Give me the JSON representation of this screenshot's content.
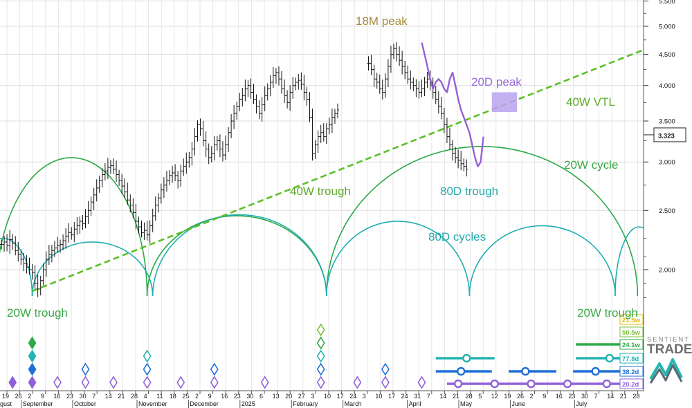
{
  "chart_data": {
    "type": "line",
    "y_axis": {
      "scale": "log",
      "tick_labels": [
        "5.500",
        "5.000",
        "4.500",
        "4.000",
        "3.500",
        "3.000",
        "2.500",
        "2.000"
      ],
      "tick_values": [
        5.5,
        5.0,
        4.5,
        4.0,
        3.5,
        3.0,
        2.5,
        2.0
      ],
      "current_value_label": "3.323",
      "current_value": 3.323
    },
    "x_axis": {
      "day_ticks": [
        "19",
        "26",
        "2",
        "9",
        "16",
        "23",
        "30",
        "7",
        "14",
        "21",
        "28",
        "4",
        "11",
        "18",
        "25",
        "2",
        "9",
        "16",
        "23",
        "30",
        "6",
        "13",
        "20",
        "27",
        "3",
        "10",
        "17",
        "24",
        "3",
        "10",
        "17",
        "24",
        "31",
        "7",
        "14",
        "21",
        "28",
        "5",
        "12",
        "19",
        "26",
        "2",
        "9",
        "16",
        "23",
        "30",
        "7",
        "14",
        "21",
        "28"
      ],
      "month_labels": [
        "gust",
        "September",
        "October",
        "November",
        "December",
        "2025",
        "February",
        "March",
        "April",
        "May",
        "June",
        "July"
      ],
      "month_after_tick": [
        -1,
        1,
        5,
        10,
        14,
        18,
        22,
        26,
        31,
        35,
        39,
        44
      ]
    },
    "price_bars": {
      "x_start": 0,
      "x_step": 1,
      "close": [
        2.2,
        2.22,
        2.19,
        2.24,
        2.21,
        2.15,
        2.12,
        2.08,
        2.05,
        2.02,
        2.0,
        1.98,
        1.9,
        1.86,
        1.92,
        2.0,
        2.08,
        2.12,
        2.15,
        2.17,
        2.19,
        2.2,
        2.23,
        2.27,
        2.3,
        2.28,
        2.33,
        2.36,
        2.4,
        2.38,
        2.44,
        2.5,
        2.58,
        2.65,
        2.72,
        2.8,
        2.86,
        2.9,
        2.94,
        2.96,
        2.92,
        2.86,
        2.8,
        2.74,
        2.68,
        2.6,
        2.55,
        2.48,
        2.4,
        2.35,
        2.3,
        2.32,
        2.28,
        2.36,
        2.45,
        2.55,
        2.62,
        2.7,
        2.75,
        2.8,
        2.85,
        2.88,
        2.85,
        2.8,
        2.9,
        2.95,
        3.0,
        3.05,
        3.15,
        3.3,
        3.45,
        3.4,
        3.25,
        3.15,
        3.05,
        3.1,
        3.2,
        3.25,
        3.15,
        3.08,
        3.2,
        3.35,
        3.5,
        3.6,
        3.7,
        3.8,
        3.85,
        3.95,
        4.0,
        3.9,
        3.8,
        3.7,
        3.6,
        3.72,
        3.85,
        3.95,
        4.05,
        4.15,
        4.2,
        4.1,
        3.95,
        3.85,
        3.75,
        3.9,
        4.0,
        4.05,
        4.08,
        4.02,
        3.9,
        3.8,
        3.55,
        3.1,
        3.2,
        3.3,
        3.35,
        3.3,
        3.4,
        3.45,
        3.55,
        3.6,
        3.65
      ],
      "close2": [
        4.35,
        4.25,
        4.1,
        4.05,
        3.95,
        3.9,
        4.1,
        4.3,
        4.5,
        4.6,
        4.5,
        4.4,
        4.3,
        4.2,
        4.1,
        4.05,
        4.0,
        3.95,
        3.9,
        3.95,
        4.05,
        4.1,
        4.05,
        3.9,
        3.8,
        3.7,
        3.6,
        3.45,
        3.3,
        3.2,
        3.1,
        3.05,
        3.02,
        2.98,
        2.95,
        2.92
      ],
      "close2_x_start": 131
    },
    "projection_line": {
      "points": [
        [
          150,
          4.7
        ],
        [
          151,
          4.5
        ],
        [
          152,
          4.3
        ],
        [
          153,
          4.1
        ],
        [
          154,
          3.95
        ],
        [
          155,
          4.05
        ],
        [
          156,
          4.1
        ],
        [
          157,
          4.05
        ],
        [
          158,
          3.95
        ],
        [
          159,
          3.9
        ],
        [
          160,
          4.1
        ],
        [
          161,
          4.2
        ],
        [
          162,
          4.0
        ],
        [
          163,
          3.8
        ],
        [
          164,
          3.65
        ],
        [
          165,
          3.55
        ],
        [
          166,
          3.45
        ],
        [
          167,
          3.35
        ],
        [
          168,
          3.2
        ],
        [
          169,
          3.05
        ],
        [
          170,
          2.95
        ],
        [
          171,
          3.0
        ],
        [
          172,
          3.3
        ]
      ]
    },
    "cycle_arcs": [
      {
        "kind": "20W",
        "x_from": -2,
        "x_to": 52,
        "peak": 3.05
      },
      {
        "kind": "20W",
        "x_from": 52,
        "x_to": 116,
        "peak": 2.45
      },
      {
        "kind": "20W",
        "x_from": 116,
        "x_to": 227,
        "peak": 3.18
      },
      {
        "kind": "80D",
        "x_from": -10,
        "x_to": 11,
        "peak": 2.25
      },
      {
        "kind": "80D",
        "x_from": 11,
        "x_to": 54,
        "peak": 2.22
      },
      {
        "kind": "80D",
        "x_from": 54,
        "x_to": 116,
        "peak": 2.46
      },
      {
        "kind": "80D",
        "x_from": 116,
        "x_to": 167,
        "peak": 2.4
      },
      {
        "kind": "80D",
        "x_from": 167,
        "x_to": 219,
        "peak": 2.36
      },
      {
        "kind": "80D",
        "x_from": 219,
        "x_to": 236,
        "peak": 2.35
      }
    ],
    "vtl": {
      "x_from": 11,
      "y_from": 1.85,
      "x_to": 233,
      "y_to": 4.65
    },
    "peak_box": {
      "x_from": 175,
      "x_to": 184,
      "y_from": 3.62,
      "y_to": 3.9
    },
    "annotations": {
      "peak_18m": "18M peak",
      "peak_20d": "20D peak",
      "vtl_40w": "40W VTL",
      "cycle_20w": "20W cycle",
      "trough_40w": "40W trough",
      "trough_80d": "80D trough",
      "cycles_80d": "80D cycles",
      "trough_20w_left": "20W trough",
      "trough_20w_right": "20W trough"
    },
    "diamond_markers": [
      {
        "x": 4,
        "levels": [
          0
        ]
      },
      {
        "x": 11,
        "levels": [
          0,
          1,
          2,
          3
        ]
      },
      {
        "x": 20,
        "levels": [
          0
        ]
      },
      {
        "x": 30,
        "levels": [
          0,
          1
        ]
      },
      {
        "x": 40,
        "levels": [
          0
        ]
      },
      {
        "x": 52,
        "levels": [
          0,
          1,
          2
        ]
      },
      {
        "x": 64,
        "levels": [
          0
        ]
      },
      {
        "x": 76,
        "levels": [
          0,
          1
        ]
      },
      {
        "x": 94,
        "levels": [
          0
        ]
      },
      {
        "x": 114,
        "levels": [
          0,
          1,
          2,
          3,
          4
        ]
      },
      {
        "x": 127,
        "levels": [
          0
        ]
      },
      {
        "x": 137,
        "levels": [
          0,
          1
        ]
      },
      {
        "x": 150,
        "levels": [
          0
        ]
      }
    ],
    "level_colors": [
      "#9060d8",
      "#1f6fd6",
      "#22b3b3",
      "#2eaa48",
      "#7fbf3a"
    ],
    "period_bars": [
      {
        "label": "21.5w",
        "color": "#e0b800",
        "x_from": null,
        "x_to": null,
        "dot": null
      },
      {
        "label": "50.5w",
        "color": "#7fbf3a",
        "x_from": null,
        "x_to": null,
        "dot": null
      },
      {
        "label": "24.1w",
        "color": "#2eaa48",
        "x_from": 205,
        "x_to": 232,
        "dot": null
      },
      {
        "label": "77.8d",
        "color": "#22b3b3",
        "x_from": 155,
        "x_to": 176,
        "dot": 166,
        "x_from2": 205,
        "x_to2": 232,
        "dot2": 217
      },
      {
        "label": "38.2d",
        "color": "#1f6fd6",
        "x_from": 155,
        "x_to": 175,
        "dot": 164,
        "x_from2": 181,
        "x_to2": 198,
        "dot2": 187,
        "x_from3": 204,
        "x_to3": 224,
        "dot3": 212
      },
      {
        "label": "20.2d",
        "color": "#9060d8",
        "x_from": 159,
        "x_to": 232,
        "dot": null,
        "dots": [
          163,
          176,
          189,
          202,
          216
        ]
      }
    ]
  },
  "branding": {
    "line1": "SENTIENT",
    "line2": "TRADER"
  },
  "colors": {
    "price": "#111111",
    "projection": "#9660d8",
    "cycle20w": "#2aa845",
    "cycle80d": "#21aeb0",
    "vtl": "#5cbf27",
    "peak_box": "#b9a3ee",
    "label_peak18m": "#a28a3c",
    "label_peak20d": "#9a6ad8",
    "label_green": "#5caa2a",
    "label_green2": "#3aa846",
    "label_teal": "#22a8ab"
  }
}
